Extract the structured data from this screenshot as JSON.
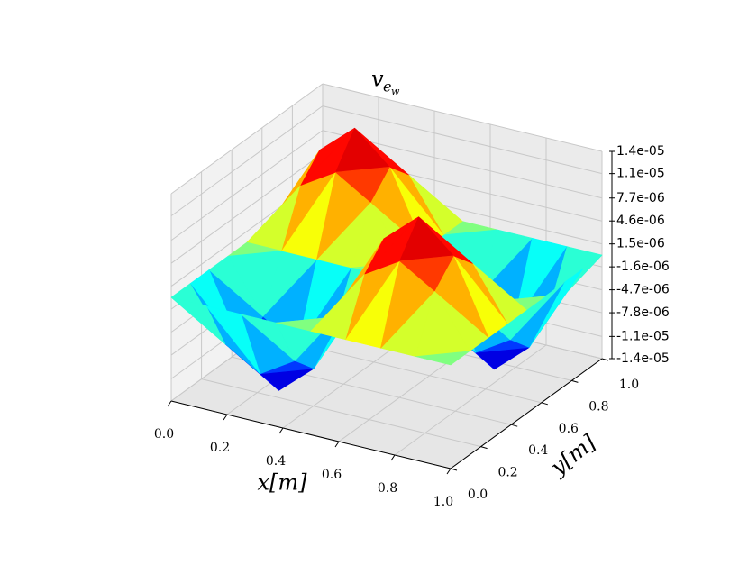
{
  "chart_data": {
    "type": "surface3d",
    "title": [
      "v",
      "e",
      "w"
    ],
    "xlabel": "x[m]",
    "ylabel": "y[m]",
    "x": [
      0,
      0.125,
      0.25,
      0.375,
      0.5,
      0.625,
      0.75,
      0.875,
      1
    ],
    "y": [
      0,
      0.125,
      0.25,
      0.375,
      0.5,
      0.625,
      0.75,
      0.875,
      1
    ],
    "z": [
      [
        0,
        0,
        0,
        0,
        0,
        0,
        0,
        0,
        0
      ],
      [
        0,
        -7e-06,
        -9.9e-06,
        -7e-06,
        0,
        7e-06,
        9.9e-06,
        7e-06,
        0
      ],
      [
        0,
        -9.9e-06,
        -1.4e-05,
        -9.9e-06,
        0,
        9.9e-06,
        1.4e-05,
        9.9e-06,
        0
      ],
      [
        0,
        -7e-06,
        -9.9e-06,
        -7e-06,
        0,
        7e-06,
        9.9e-06,
        7e-06,
        0
      ],
      [
        0,
        0,
        0,
        0,
        0,
        0,
        0,
        0,
        0
      ],
      [
        0,
        7e-06,
        9.9e-06,
        7e-06,
        0,
        -7e-06,
        -9.9e-06,
        -7e-06,
        0
      ],
      [
        0,
        9.9e-06,
        1.4e-05,
        9.9e-06,
        0,
        -9.9e-06,
        -1.4e-05,
        -9.9e-06,
        0
      ],
      [
        0,
        7e-06,
        9.9e-06,
        7e-06,
        0,
        -7e-06,
        -9.9e-06,
        -7e-06,
        0
      ],
      [
        0,
        0,
        0,
        0,
        0,
        0,
        0,
        0,
        0
      ]
    ],
    "colormap": "jet",
    "xlim": [
      0,
      1
    ],
    "ylim": [
      0,
      1
    ],
    "zlim": [
      -1.4e-05,
      1.4e-05
    ],
    "xticks": [
      {
        "value": 0,
        "label": "0.0"
      },
      0.2,
      0.4,
      0.6,
      0.8,
      {
        "value": 1,
        "label": "1.0"
      }
    ],
    "yticks": [
      {
        "value": 0,
        "label": "0.0"
      },
      0.2,
      0.4,
      0.6,
      0.8,
      {
        "value": 1,
        "label": "1.0"
      }
    ],
    "zticks": [
      {
        "value": 1.4e-05,
        "label": "1.4e-05"
      },
      {
        "value": 1.1e-05,
        "label": "1.1e-05"
      },
      {
        "value": 7.7e-06,
        "label": "7.7e-06"
      },
      {
        "value": 4.6e-06,
        "label": "4.6e-06"
      },
      {
        "value": 1.5e-06,
        "label": "1.5e-06"
      },
      {
        "value": -1.6e-06,
        "label": "-1.6e-06"
      },
      {
        "value": -4.7e-06,
        "label": "-4.7e-06"
      },
      {
        "value": -7.8e-06,
        "label": "-7.8e-06"
      },
      {
        "value": -1.1e-05,
        "label": "-1.1e-05"
      },
      {
        "value": -1.4e-05,
        "label": "-1.4e-05"
      }
    ],
    "grid": true
  }
}
